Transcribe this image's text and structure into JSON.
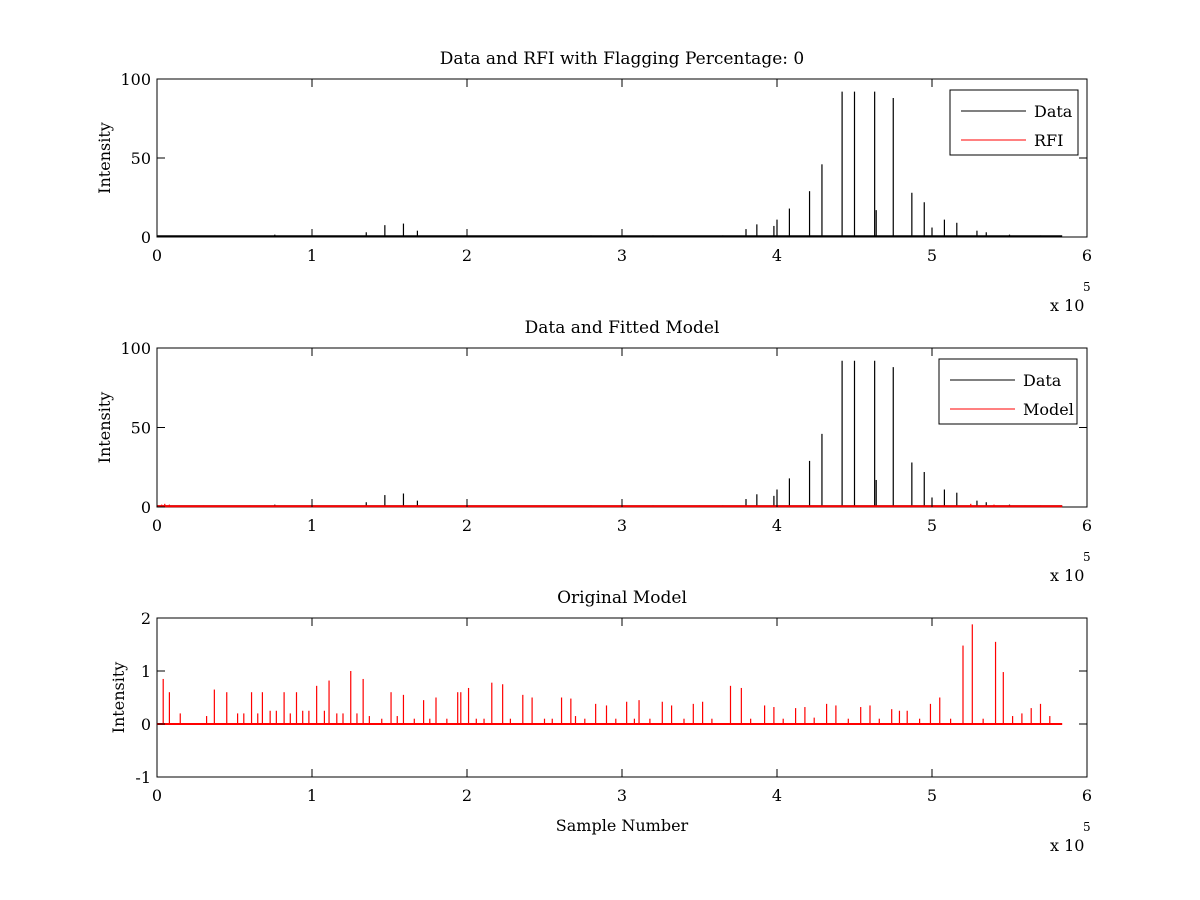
{
  "colors": {
    "data": "#000000",
    "rfi": "#ff0000",
    "model": "#ff0000",
    "axes": "#000000",
    "background": "#ffffff"
  },
  "chart_data": [
    {
      "type": "line",
      "title": "Data and RFI with Flagging Percentage: 0",
      "xlabel": "",
      "ylabel": "Intensity",
      "xlim": [
        0,
        600000
      ],
      "ylim": [
        0,
        100
      ],
      "xticks": [
        0,
        100000,
        200000,
        300000,
        400000,
        500000,
        600000
      ],
      "xtick_labels": [
        "0",
        "1",
        "2",
        "3",
        "4",
        "5",
        "6"
      ],
      "yticks": [
        0,
        50,
        100
      ],
      "ytick_labels": [
        "0",
        "50",
        "100"
      ],
      "x_multiplier": {
        "base": "x 10",
        "exponent": "5"
      },
      "legend": {
        "placement": "top-right",
        "entries": [
          "Data",
          "RFI"
        ]
      },
      "baseline": 0.5,
      "series": [
        {
          "name": "Data",
          "color": "#000000",
          "spikes": [
            [
              76000,
              1.5
            ],
            [
              135000,
              3
            ],
            [
              147000,
              7.5
            ],
            [
              159000,
              8.5
            ],
            [
              168000,
              4
            ],
            [
              200000,
              1
            ],
            [
              280000,
              1
            ],
            [
              320000,
              1
            ],
            [
              365000,
              1
            ],
            [
              380000,
              5
            ],
            [
              387000,
              8
            ],
            [
              398000,
              7
            ],
            [
              400000,
              11
            ],
            [
              408000,
              18
            ],
            [
              421000,
              29
            ],
            [
              429000,
              46
            ],
            [
              442000,
              92
            ],
            [
              450000,
              92
            ],
            [
              463000,
              92
            ],
            [
              464000,
              17
            ],
            [
              475000,
              88
            ],
            [
              487000,
              28
            ],
            [
              495000,
              22
            ],
            [
              500000,
              6
            ],
            [
              508000,
              11
            ],
            [
              516000,
              9
            ],
            [
              529000,
              4
            ],
            [
              535000,
              3
            ],
            [
              550000,
              1.5
            ],
            [
              570000,
              1
            ]
          ]
        },
        {
          "name": "RFI",
          "color": "#ff0000",
          "spikes": []
        }
      ]
    },
    {
      "type": "line",
      "title": "Data and Fitted Model",
      "xlabel": "",
      "ylabel": "Intensity",
      "xlim": [
        0,
        600000
      ],
      "ylim": [
        0,
        100
      ],
      "xticks": [
        0,
        100000,
        200000,
        300000,
        400000,
        500000,
        600000
      ],
      "xtick_labels": [
        "0",
        "1",
        "2",
        "3",
        "4",
        "5",
        "6"
      ],
      "yticks": [
        0,
        50,
        100
      ],
      "ytick_labels": [
        "0",
        "50",
        "100"
      ],
      "x_multiplier": {
        "base": "x 10",
        "exponent": "5"
      },
      "legend": {
        "placement": "top-right",
        "entries": [
          "Data",
          "Model"
        ]
      },
      "baseline": 0.5,
      "series": [
        {
          "name": "Data",
          "color": "#000000",
          "spikes": [
            [
              76000,
              1.5
            ],
            [
              135000,
              3
            ],
            [
              147000,
              7.5
            ],
            [
              159000,
              8.5
            ],
            [
              168000,
              4
            ],
            [
              200000,
              1
            ],
            [
              280000,
              1
            ],
            [
              320000,
              1
            ],
            [
              365000,
              1
            ],
            [
              380000,
              5
            ],
            [
              387000,
              8
            ],
            [
              398000,
              7
            ],
            [
              400000,
              11
            ],
            [
              408000,
              18
            ],
            [
              421000,
              29
            ],
            [
              429000,
              46
            ],
            [
              442000,
              92
            ],
            [
              450000,
              92
            ],
            [
              463000,
              92
            ],
            [
              464000,
              17
            ],
            [
              475000,
              88
            ],
            [
              487000,
              28
            ],
            [
              495000,
              22
            ],
            [
              500000,
              6
            ],
            [
              508000,
              11
            ],
            [
              516000,
              9
            ],
            [
              529000,
              4
            ],
            [
              535000,
              3
            ],
            [
              550000,
              1.5
            ],
            [
              570000,
              1
            ]
          ]
        },
        {
          "name": "Model",
          "color": "#ff0000",
          "spikes": [
            [
              3000,
              1.5
            ],
            [
              5000,
              2
            ],
            [
              8000,
              1.5
            ],
            [
              30000,
              1
            ],
            [
              60000,
              1
            ],
            [
              100000,
              1
            ],
            [
              150000,
              1
            ],
            [
              200000,
              1
            ],
            [
              250000,
              1
            ],
            [
              300000,
              1
            ],
            [
              350000,
              1
            ],
            [
              400000,
              1
            ],
            [
              450000,
              1
            ],
            [
              500000,
              1
            ],
            [
              525000,
              2
            ],
            [
              540000,
              1.5
            ],
            [
              560000,
              1
            ]
          ]
        }
      ]
    },
    {
      "type": "line",
      "title": "Original Model",
      "xlabel": "Sample Number",
      "ylabel": "Intensity",
      "xlim": [
        0,
        600000
      ],
      "ylim": [
        -1,
        2
      ],
      "xticks": [
        0,
        100000,
        200000,
        300000,
        400000,
        500000,
        600000
      ],
      "xtick_labels": [
        "0",
        "1",
        "2",
        "3",
        "4",
        "5",
        "6"
      ],
      "yticks": [
        -1,
        0,
        1,
        2
      ],
      "ytick_labels": [
        "-1",
        "0",
        "1",
        "2"
      ],
      "x_multiplier": {
        "base": "x 10",
        "exponent": "5"
      },
      "legend": null,
      "baseline": 0,
      "series": [
        {
          "name": "",
          "color": "#ff0000",
          "spikes": [
            [
              4000,
              0.85
            ],
            [
              8000,
              0.6
            ],
            [
              15000,
              0.2
            ],
            [
              32000,
              0.15
            ],
            [
              37000,
              0.65
            ],
            [
              45000,
              0.6
            ],
            [
              52000,
              0.2
            ],
            [
              56000,
              0.2
            ],
            [
              61000,
              0.6
            ],
            [
              65000,
              0.2
            ],
            [
              68000,
              0.6
            ],
            [
              73000,
              0.25
            ],
            [
              77000,
              0.25
            ],
            [
              82000,
              0.6
            ],
            [
              86000,
              0.2
            ],
            [
              90000,
              0.6
            ],
            [
              94000,
              0.25
            ],
            [
              98000,
              0.25
            ],
            [
              103000,
              0.72
            ],
            [
              108000,
              0.25
            ],
            [
              111000,
              0.82
            ],
            [
              116000,
              0.2
            ],
            [
              120000,
              0.2
            ],
            [
              125000,
              1.0
            ],
            [
              129000,
              0.2
            ],
            [
              133000,
              0.85
            ],
            [
              137000,
              0.15
            ],
            [
              145000,
              0.1
            ],
            [
              151000,
              0.6
            ],
            [
              155000,
              0.15
            ],
            [
              159000,
              0.55
            ],
            [
              166000,
              0.1
            ],
            [
              172000,
              0.45
            ],
            [
              176000,
              0.1
            ],
            [
              180000,
              0.5
            ],
            [
              187000,
              0.1
            ],
            [
              194000,
              0.6
            ],
            [
              196000,
              0.6
            ],
            [
              201000,
              0.68
            ],
            [
              206000,
              0.1
            ],
            [
              211000,
              0.1
            ],
            [
              216000,
              0.78
            ],
            [
              223000,
              0.75
            ],
            [
              228000,
              0.1
            ],
            [
              236000,
              0.55
            ],
            [
              242000,
              0.5
            ],
            [
              250000,
              0.1
            ],
            [
              255000,
              0.1
            ],
            [
              261000,
              0.5
            ],
            [
              267000,
              0.48
            ],
            [
              270000,
              0.15
            ],
            [
              276000,
              0.1
            ],
            [
              283000,
              0.38
            ],
            [
              290000,
              0.35
            ],
            [
              296000,
              0.1
            ],
            [
              303000,
              0.42
            ],
            [
              308000,
              0.1
            ],
            [
              311000,
              0.45
            ],
            [
              318000,
              0.1
            ],
            [
              326000,
              0.42
            ],
            [
              332000,
              0.35
            ],
            [
              340000,
              0.1
            ],
            [
              346000,
              0.38
            ],
            [
              352000,
              0.42
            ],
            [
              358000,
              0.1
            ],
            [
              370000,
              0.72
            ],
            [
              377000,
              0.68
            ],
            [
              383000,
              0.1
            ],
            [
              392000,
              0.35
            ],
            [
              398000,
              0.32
            ],
            [
              404000,
              0.1
            ],
            [
              412000,
              0.3
            ],
            [
              418000,
              0.32
            ],
            [
              424000,
              0.12
            ],
            [
              432000,
              0.38
            ],
            [
              438000,
              0.35
            ],
            [
              446000,
              0.1
            ],
            [
              454000,
              0.32
            ],
            [
              460000,
              0.35
            ],
            [
              466000,
              0.1
            ],
            [
              474000,
              0.28
            ],
            [
              479000,
              0.25
            ],
            [
              484000,
              0.25
            ],
            [
              492000,
              0.1
            ],
            [
              499000,
              0.38
            ],
            [
              505000,
              0.5
            ],
            [
              512000,
              0.1
            ],
            [
              520000,
              1.48
            ],
            [
              526000,
              1.88
            ],
            [
              533000,
              0.1
            ],
            [
              541000,
              1.55
            ],
            [
              546000,
              0.98
            ],
            [
              552000,
              0.15
            ],
            [
              558000,
              0.2
            ],
            [
              564000,
              0.3
            ],
            [
              570000,
              0.38
            ],
            [
              576000,
              0.15
            ]
          ]
        }
      ]
    }
  ]
}
